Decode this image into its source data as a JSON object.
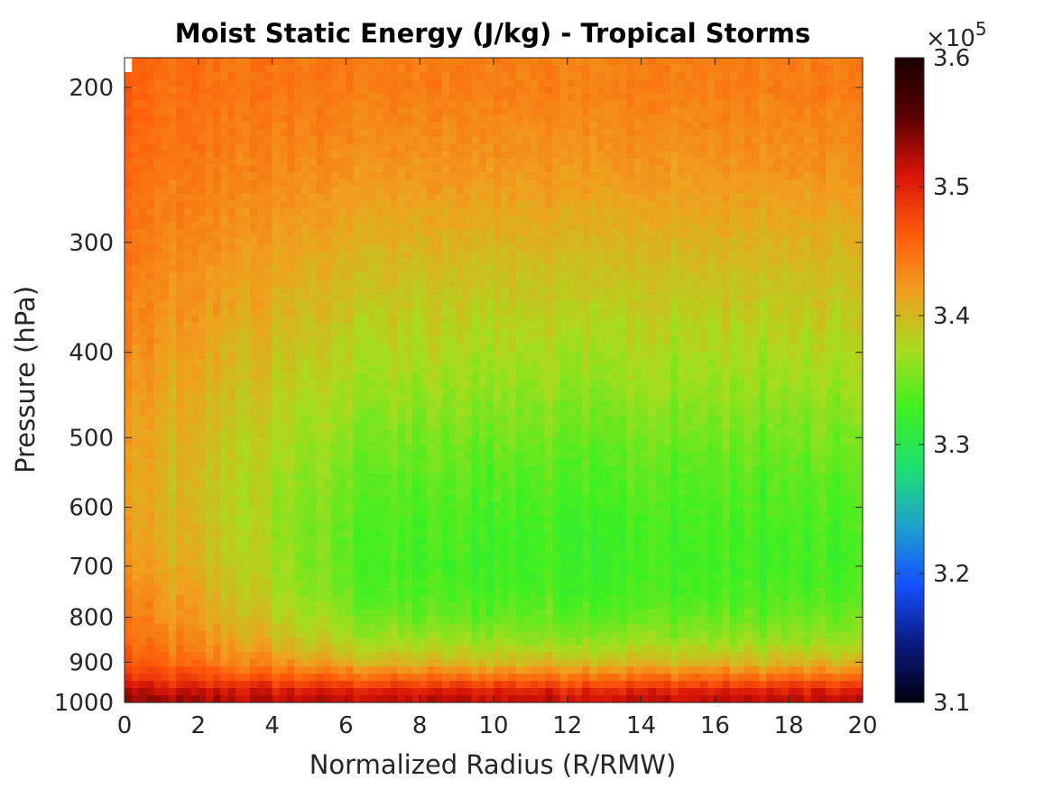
{
  "chart_data": {
    "type": "heatmap",
    "title": "Moist Static Energy (J/kg) - Tropical Storms",
    "xlabel": "Normalized Radius (R/RMW)",
    "ylabel": "Pressure (hPa)",
    "xlim": [
      0,
      20
    ],
    "ylim_hPa": [
      1000,
      185
    ],
    "y_scale": "log",
    "x_ticks": [
      "0",
      "2",
      "4",
      "6",
      "8",
      "10",
      "12",
      "14",
      "16",
      "18",
      "20"
    ],
    "x_tick_values": [
      0,
      2,
      4,
      6,
      8,
      10,
      12,
      14,
      16,
      18,
      20
    ],
    "y_ticks": [
      "200",
      "300",
      "400",
      "500",
      "600",
      "700",
      "800",
      "900",
      "1000"
    ],
    "y_tick_values": [
      200,
      300,
      400,
      500,
      600,
      700,
      800,
      900,
      1000
    ],
    "colorbar": {
      "range": [
        310000,
        360000
      ],
      "ticks": [
        "3.1",
        "3.2",
        "3.3",
        "3.4",
        "3.5",
        "3.6"
      ],
      "tick_values": [
        310000,
        320000,
        330000,
        340000,
        350000,
        360000
      ],
      "exponent_label": "×10",
      "exponent_power": "5",
      "colormap": [
        "#000010",
        "#0a1a80",
        "#1450ff",
        "#1ea0d0",
        "#1ee070",
        "#3cf020",
        "#a8dc1e",
        "#f0a01e",
        "#ff5a0a",
        "#d81408",
        "#5a0000",
        "#1a0000"
      ]
    },
    "field_profile": {
      "pressure_hPa": [
        1000,
        970,
        940,
        900,
        850,
        800,
        750,
        700,
        650,
        600,
        550,
        500,
        450,
        400,
        350,
        300,
        250,
        200
      ],
      "mse_inner": [
        353000,
        351000,
        348000,
        345500,
        344000,
        343000,
        342200,
        341500,
        341000,
        340500,
        340500,
        340800,
        341200,
        342000,
        342800,
        343500,
        344300,
        345000
      ],
      "mse_outer": [
        352000,
        350000,
        345500,
        340000,
        336500,
        334500,
        333200,
        332800,
        333000,
        333400,
        334000,
        335000,
        336200,
        337400,
        338800,
        340400,
        342400,
        344000
      ]
    },
    "missing_region": "white cells near radius 0 above ~220 hPa"
  }
}
